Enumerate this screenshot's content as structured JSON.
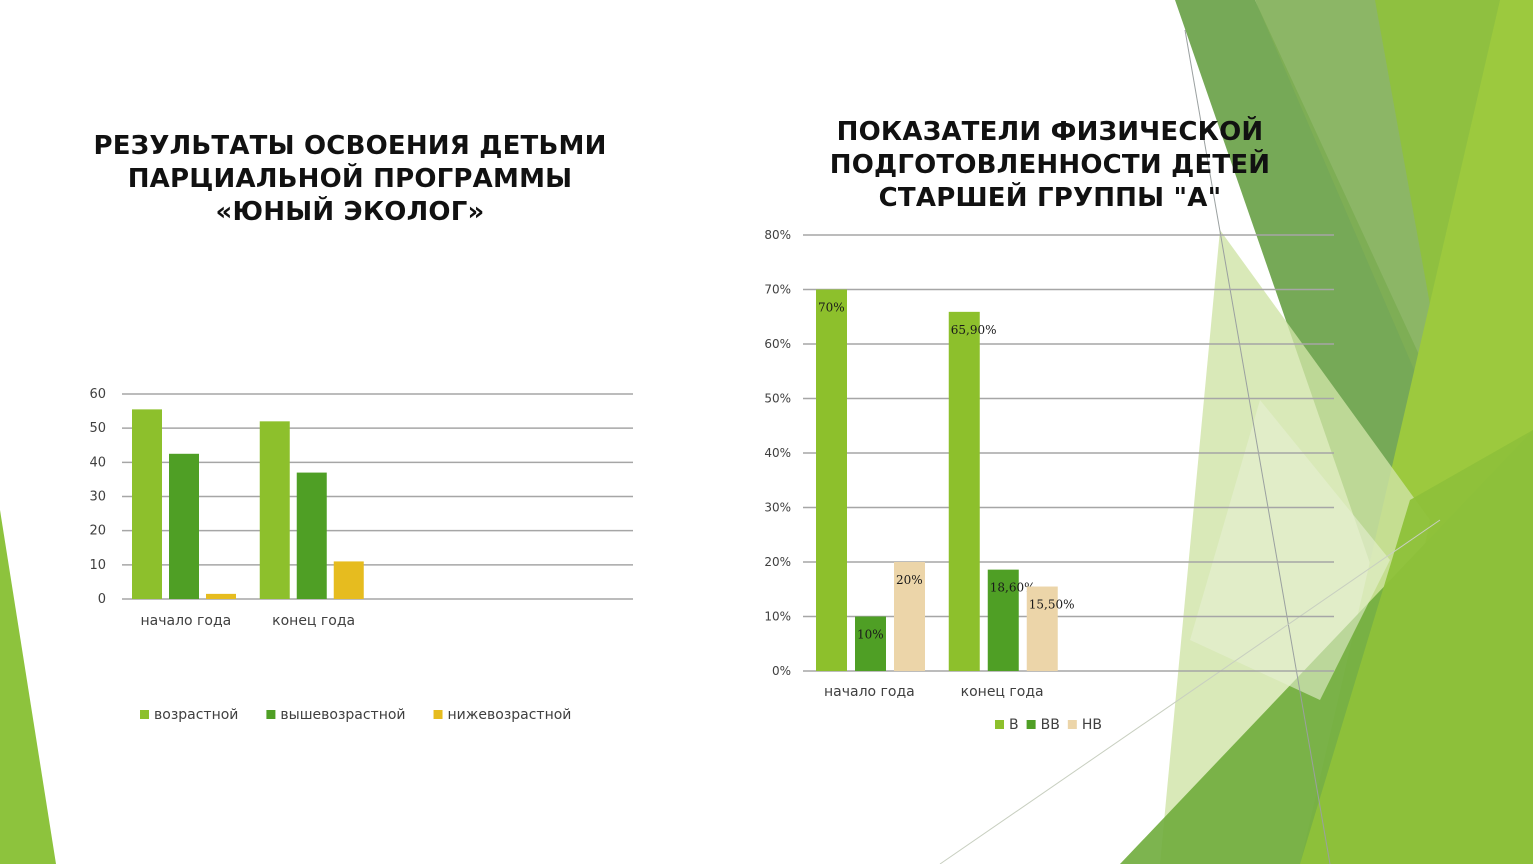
{
  "slide": {
    "left_title": [
      "РЕЗУЛЬТАТЫ ОСВОЕНИЯ ДЕТЬМИ",
      "ПАРЦИАЛЬНОЙ ПРОГРАММЫ",
      "«ЮНЫЙ ЭКОЛОГ»"
    ],
    "right_title": [
      "ПОКАЗАТЕЛИ ФИЗИЧЕСКОЙ",
      "ПОДГОТОВЛЕННОСТИ ДЕТЕЙ",
      "СТАРШЕЙ ГРУППЫ \"А\""
    ]
  },
  "colors": {
    "light_green": "#8dc02c",
    "dark_green": "#4f9f25",
    "yellow": "#e6bc1f",
    "beige": "#ecd5a9",
    "grid": "#a6a6a6",
    "text": "#404040"
  },
  "chart_data": [
    {
      "type": "bar",
      "title": "РЕЗУЛЬТАТЫ ОСВОЕНИЯ ДЕТЬМИ ПАРЦИАЛЬНОЙ ПРОГРАММЫ «ЮНЫЙ ЭКОЛОГ»",
      "categories": [
        "начало года",
        "конец года",
        "",
        ""
      ],
      "series": [
        {
          "name": "возрастной",
          "values": [
            55.5,
            52,
            null,
            null
          ],
          "color": "#8dc02c"
        },
        {
          "name": "вышевозрастной",
          "values": [
            42.5,
            37,
            null,
            null
          ],
          "color": "#4f9f25"
        },
        {
          "name": "нижевозрастной",
          "values": [
            1.5,
            11,
            null,
            null
          ],
          "color": "#e6bc1f"
        }
      ],
      "ylim": [
        0,
        60
      ],
      "yticks": [
        "0",
        "10",
        "20",
        "30",
        "40",
        "50",
        "60"
      ],
      "grid": true,
      "legend": "bottom"
    },
    {
      "type": "bar",
      "title": "ПОКАЗАТЕЛИ ФИЗИЧЕСКОЙ ПОДГОТОВЛЕННОСТИ ДЕТЕЙ СТАРШЕЙ ГРУППЫ \"А\"",
      "categories": [
        "начало года",
        "конец года",
        "",
        ""
      ],
      "series": [
        {
          "name": "В",
          "values": [
            70,
            65.9,
            null,
            null
          ],
          "labels": [
            "70%",
            "65,90%",
            "",
            ""
          ],
          "color": "#8dc02c"
        },
        {
          "name": "ВВ",
          "values": [
            10,
            18.6,
            null,
            null
          ],
          "labels": [
            "10%",
            "18,60%",
            "",
            ""
          ],
          "color": "#4f9f25"
        },
        {
          "name": "НВ",
          "values": [
            20,
            15.5,
            null,
            null
          ],
          "labels": [
            "20%",
            "15,50%",
            "",
            ""
          ],
          "color": "#ecd5a9"
        }
      ],
      "ylim": [
        0,
        80
      ],
      "yticks": [
        "0%",
        "10%",
        "20%",
        "30%",
        "40%",
        "50%",
        "60%",
        "70%",
        "80%"
      ],
      "grid": true,
      "legend": "bottom"
    }
  ]
}
